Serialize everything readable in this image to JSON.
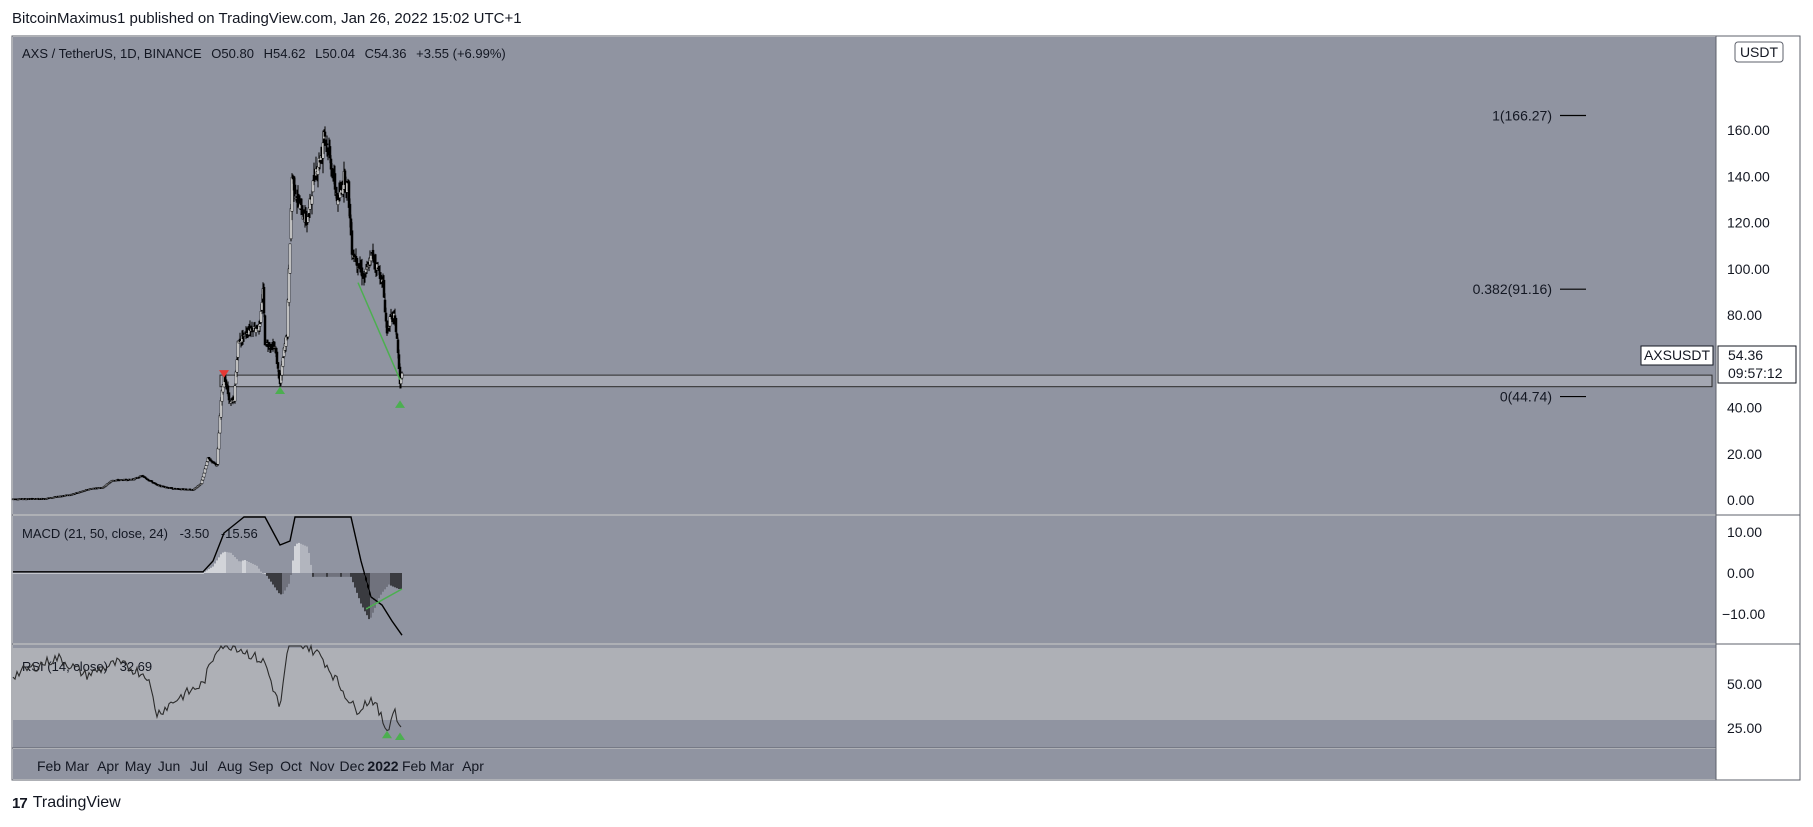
{
  "header": {
    "text": "BitcoinMaximus1 published on TradingView.com, Jan 26, 2022 15:02 UTC+1"
  },
  "footer": {
    "logo_glyph": "17",
    "brand": "TradingView"
  },
  "colors": {
    "pane_bg": "#9094a1",
    "rsi_band": "#aeb0b6",
    "green": "#4caf50",
    "red": "#e53935",
    "candle": "#000000",
    "price_tag_bg": "#ffffff"
  },
  "main_pane": {
    "legend": {
      "symbol": "AXS / TetherUS, 1D, BINANCE",
      "o_label": "O",
      "o_value": "50.80",
      "h_label": "H",
      "h_value": "54.62",
      "l_label": "L",
      "l_value": "50.04",
      "c_label": "C",
      "c_value": "54.36",
      "change": "+3.55 (+6.99%)"
    },
    "currency": "USDT",
    "price_tag": {
      "symbol": "AXSUSDT",
      "price": "54.36",
      "countdown": "09:57:12"
    },
    "fib_levels": [
      {
        "label": "1(166.27)",
        "value": 166.27
      },
      {
        "label": "0.382(91.16)",
        "value": 91.16
      },
      {
        "label": "0(44.74)",
        "value": 44.74
      }
    ],
    "support_zone": {
      "low": 49,
      "high": 54
    }
  },
  "macd_pane": {
    "legend": {
      "title": "MACD (21, 50, close, 24)",
      "v1": "-3.50",
      "v2": "-15.56"
    },
    "ticks": [
      "10.00",
      "0.00",
      "−10.00"
    ]
  },
  "rsi_pane": {
    "legend": {
      "title": "RSI (14, close)",
      "value": "32.69"
    },
    "ticks": [
      "50.00",
      "25.00"
    ]
  },
  "chart_data": {
    "type": "candlestick",
    "title": "AXS / TetherUS, 1D, BINANCE",
    "ylabel": "USDT",
    "ylim": [
      0,
      175
    ],
    "y_ticks": [
      "0.00",
      "20.00",
      "40.00",
      "60.00",
      "80.00",
      "100.00",
      "120.00",
      "140.00",
      "160.00"
    ],
    "x_ticks": [
      "Feb",
      "Mar",
      "Apr",
      "May",
      "Jun",
      "Jul",
      "Aug",
      "Sep",
      "Oct",
      "Nov",
      "Dec",
      "2022",
      "Feb",
      "Mar",
      "Apr"
    ],
    "close_path": [
      {
        "x": "2021-01-01",
        "y": 0.5
      },
      {
        "x": "2021-02-01",
        "y": 0.6
      },
      {
        "x": "2021-03-01",
        "y": 2.5
      },
      {
        "x": "2021-03-20",
        "y": 5.0
      },
      {
        "x": "2021-04-01",
        "y": 5.5
      },
      {
        "x": "2021-04-10",
        "y": 8.5
      },
      {
        "x": "2021-05-01",
        "y": 9.0
      },
      {
        "x": "2021-05-10",
        "y": 10.5
      },
      {
        "x": "2021-05-25",
        "y": 6.5
      },
      {
        "x": "2021-06-10",
        "y": 5.0
      },
      {
        "x": "2021-06-30",
        "y": 4.5
      },
      {
        "x": "2021-07-08",
        "y": 7.0
      },
      {
        "x": "2021-07-15",
        "y": 18.0
      },
      {
        "x": "2021-07-24",
        "y": 15.0
      },
      {
        "x": "2021-07-28",
        "y": 43.0
      },
      {
        "x": "2021-07-31",
        "y": 54.0
      },
      {
        "x": "2021-08-06",
        "y": 42.0
      },
      {
        "x": "2021-08-10",
        "y": 43.0
      },
      {
        "x": "2021-08-14",
        "y": 68.0
      },
      {
        "x": "2021-08-25",
        "y": 74.0
      },
      {
        "x": "2021-09-05",
        "y": 75.0
      },
      {
        "x": "2021-09-08",
        "y": 92.0
      },
      {
        "x": "2021-09-10",
        "y": 68.0
      },
      {
        "x": "2021-09-20",
        "y": 66.0
      },
      {
        "x": "2021-09-25",
        "y": 50.0
      },
      {
        "x": "2021-09-29",
        "y": 65.0
      },
      {
        "x": "2021-10-02",
        "y": 72.0
      },
      {
        "x": "2021-10-05",
        "y": 112.0
      },
      {
        "x": "2021-10-07",
        "y": 140.0
      },
      {
        "x": "2021-10-12",
        "y": 130.0
      },
      {
        "x": "2021-10-22",
        "y": 120.0
      },
      {
        "x": "2021-10-30",
        "y": 142.0
      },
      {
        "x": "2021-11-06",
        "y": 150.0
      },
      {
        "x": "2021-11-08",
        "y": 160.0
      },
      {
        "x": "2021-11-15",
        "y": 145.0
      },
      {
        "x": "2021-11-22",
        "y": 128.0
      },
      {
        "x": "2021-11-28",
        "y": 140.0
      },
      {
        "x": "2021-12-02",
        "y": 135.0
      },
      {
        "x": "2021-12-06",
        "y": 108.0
      },
      {
        "x": "2021-12-12",
        "y": 102.0
      },
      {
        "x": "2021-12-18",
        "y": 96.0
      },
      {
        "x": "2021-12-26",
        "y": 106.0
      },
      {
        "x": "2022-01-01",
        "y": 100.0
      },
      {
        "x": "2022-01-06",
        "y": 93.0
      },
      {
        "x": "2022-01-10",
        "y": 72.0
      },
      {
        "x": "2022-01-13",
        "y": 78.0
      },
      {
        "x": "2022-01-17",
        "y": 80.0
      },
      {
        "x": "2022-01-20",
        "y": 70.0
      },
      {
        "x": "2022-01-23",
        "y": 50.0
      },
      {
        "x": "2022-01-25",
        "y": 54.36
      }
    ],
    "macd_path": [
      {
        "x": "2021-01-01",
        "y": 0.3
      },
      {
        "x": "2021-07-10",
        "y": 0.3
      },
      {
        "x": "2021-07-20",
        "y": 3
      },
      {
        "x": "2021-07-31",
        "y": 10
      },
      {
        "x": "2021-08-15",
        "y": 13
      },
      {
        "x": "2021-08-20",
        "y": 16
      },
      {
        "x": "2021-09-10",
        "y": 16
      },
      {
        "x": "2021-09-25",
        "y": 7
      },
      {
        "x": "2021-10-05",
        "y": 8
      },
      {
        "x": "2021-10-10",
        "y": 20
      },
      {
        "x": "2021-12-05",
        "y": 15
      },
      {
        "x": "2021-12-15",
        "y": 3
      },
      {
        "x": "2021-12-25",
        "y": -6
      },
      {
        "x": "2022-01-05",
        "y": -8
      },
      {
        "x": "2022-01-15",
        "y": -12
      },
      {
        "x": "2022-01-25",
        "y": -15.56
      }
    ],
    "rsi_path": [
      {
        "x": "2021-01-01",
        "y": 55
      },
      {
        "x": "2021-02-15",
        "y": 65
      },
      {
        "x": "2021-03-15",
        "y": 55
      },
      {
        "x": "2021-04-15",
        "y": 62
      },
      {
        "x": "2021-05-15",
        "y": 55
      },
      {
        "x": "2021-05-25",
        "y": 33
      },
      {
        "x": "2021-06-15",
        "y": 42
      },
      {
        "x": "2021-07-10",
        "y": 50
      },
      {
        "x": "2021-07-25",
        "y": 72
      },
      {
        "x": "2021-08-10",
        "y": 72
      },
      {
        "x": "2021-09-10",
        "y": 62
      },
      {
        "x": "2021-09-25",
        "y": 36
      },
      {
        "x": "2021-10-05",
        "y": 78
      },
      {
        "x": "2021-11-05",
        "y": 66
      },
      {
        "x": "2021-11-25",
        "y": 48
      },
      {
        "x": "2021-12-10",
        "y": 35
      },
      {
        "x": "2021-12-26",
        "y": 42
      },
      {
        "x": "2022-01-10",
        "y": 24
      },
      {
        "x": "2022-01-18",
        "y": 36
      },
      {
        "x": "2022-01-23",
        "y": 23
      },
      {
        "x": "2022-01-25",
        "y": 32.69
      }
    ],
    "annotations": [
      {
        "type": "arrow-down",
        "color": "red",
        "x": "2021-07-31",
        "y": 54
      },
      {
        "type": "arrow-up",
        "color": "green",
        "x": "2021-09-25",
        "y": 48
      },
      {
        "type": "arrow-up",
        "color": "green",
        "x": "2022-01-23",
        "y": 42
      },
      {
        "type": "trendline",
        "pane": "price",
        "color": "green",
        "from": {
          "x": "2021-12-12",
          "y": 94
        },
        "to": {
          "x": "2022-01-23",
          "y": 52
        }
      },
      {
        "type": "trendline",
        "pane": "macd",
        "color": "green",
        "from": {
          "x": "2021-12-20",
          "y": -9
        },
        "to": {
          "x": "2022-01-25",
          "y": -4
        }
      },
      {
        "type": "arrow-up",
        "pane": "rsi",
        "color": "green",
        "x": "2022-01-10",
        "y": 22
      },
      {
        "type": "arrow-up",
        "pane": "rsi",
        "color": "green",
        "x": "2022-01-23",
        "y": 21
      }
    ]
  }
}
